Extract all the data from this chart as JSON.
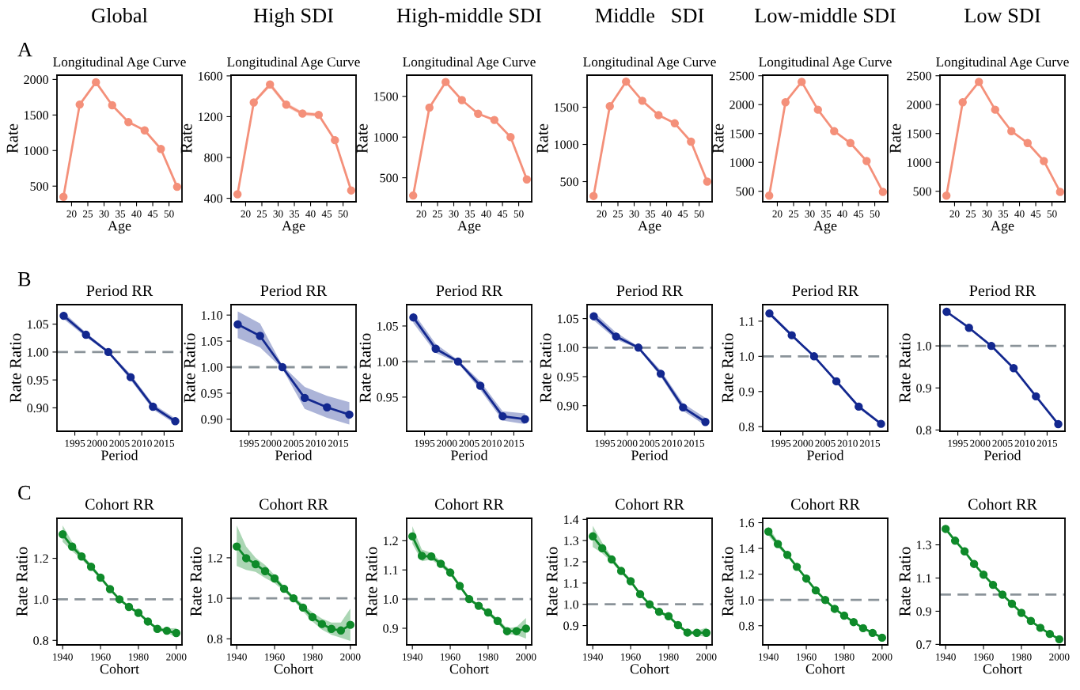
{
  "chart_data": [
    {
      "type": "line",
      "subtitle": "Global",
      "title": "Longitudinal Age Curve",
      "xlabel": "Age",
      "ylabel": "Rate",
      "annotations": [
        "A"
      ],
      "x": [
        17.5,
        22.5,
        27.5,
        32.5,
        37.5,
        42.5,
        47.5,
        52.5
      ],
      "xlim": [
        15.5,
        54
      ],
      "xticks": [
        20,
        25,
        30,
        35,
        40,
        45,
        50
      ],
      "ylim": [
        280,
        2060
      ],
      "yticks": [
        500,
        1000,
        1500,
        2000
      ],
      "marker": "circle",
      "line_style": "solid",
      "series": [
        {
          "color": "#f4907a",
          "values": [
            350,
            1647,
            1961,
            1637,
            1400,
            1284,
            1023,
            490
          ]
        }
      ]
    },
    {
      "type": "line",
      "subtitle": "High SDI",
      "title": "Longitudinal Age Curve",
      "xlabel": "Age",
      "ylabel": "Rate",
      "x": [
        17.5,
        22.5,
        27.5,
        32.5,
        37.5,
        42.5,
        47.5,
        52.5
      ],
      "xlim": [
        15.5,
        54
      ],
      "xticks": [
        20,
        25,
        30,
        35,
        40,
        45,
        50
      ],
      "ylim": [
        366,
        1607
      ],
      "yticks": [
        400,
        800,
        1200,
        1600
      ],
      "marker": "circle",
      "line_style": "solid",
      "series": [
        {
          "color": "#f4907a",
          "values": [
            440,
            1339,
            1516,
            1318,
            1231,
            1218,
            970,
            477
          ],
          "lower": [
            430,
            1325,
            1490,
            1295,
            1212,
            1200,
            958,
            468
          ],
          "upper": [
            450,
            1352,
            1540,
            1340,
            1250,
            1236,
            982,
            486
          ]
        }
      ]
    },
    {
      "type": "line",
      "subtitle": "High-middle SDI",
      "title": "Longitudinal Age Curve",
      "xlabel": "Age",
      "ylabel": "Rate",
      "x": [
        17.5,
        22.5,
        27.5,
        32.5,
        37.5,
        42.5,
        47.5,
        52.5
      ],
      "xlim": [
        15.5,
        54
      ],
      "xticks": [
        20,
        25,
        30,
        35,
        40,
        45,
        50
      ],
      "ylim": [
        205,
        1760
      ],
      "yticks": [
        500,
        1000,
        1500
      ],
      "marker": "circle",
      "line_style": "solid",
      "series": [
        {
          "color": "#f4907a",
          "values": [
            282,
            1361,
            1676,
            1454,
            1286,
            1210,
            1000,
            479
          ]
        }
      ]
    },
    {
      "type": "line",
      "subtitle": "Middle   SDI",
      "title": "Longitudinal Age Curve",
      "xlabel": "Age",
      "ylabel": "Rate",
      "x": [
        17.5,
        22.5,
        27.5,
        32.5,
        37.5,
        42.5,
        47.5,
        52.5
      ],
      "xlim": [
        15.5,
        54
      ],
      "xticks": [
        20,
        25,
        30,
        35,
        40,
        45,
        50
      ],
      "ylim": [
        229,
        1931
      ],
      "yticks": [
        500,
        1000,
        1500
      ],
      "marker": "circle",
      "line_style": "solid",
      "series": [
        {
          "color": "#f4907a",
          "values": [
            307,
            1514,
            1844,
            1587,
            1394,
            1284,
            1037,
            500
          ]
        }
      ]
    },
    {
      "type": "line",
      "subtitle": "Low-middle SDI",
      "title": "Longitudinal Age Curve",
      "xlabel": "Age",
      "ylabel": "Rate",
      "x": [
        17.5,
        22.5,
        27.5,
        32.5,
        37.5,
        42.5,
        47.5,
        52.5
      ],
      "xlim": [
        15.5,
        54
      ],
      "xticks": [
        20,
        25,
        30,
        35,
        40,
        45,
        50
      ],
      "ylim": [
        318,
        2510
      ],
      "yticks": [
        500,
        1000,
        1500,
        2000,
        2500
      ],
      "marker": "circle",
      "line_style": "solid",
      "series": [
        {
          "color": "#f4907a",
          "values": [
            424,
            2041,
            2394,
            1912,
            1541,
            1335,
            1024,
            490
          ]
        }
      ]
    },
    {
      "type": "line",
      "subtitle": "Low SDI",
      "title": "Longitudinal Age Curve",
      "xlabel": "Age",
      "ylabel": "Rate",
      "x": [
        17.5,
        22.5,
        27.5,
        32.5,
        37.5,
        42.5,
        47.5,
        52.5
      ],
      "xlim": [
        15.5,
        54
      ],
      "xticks": [
        20,
        25,
        30,
        35,
        40,
        45,
        50
      ],
      "ylim": [
        318,
        2510
      ],
      "yticks": [
        500,
        1000,
        1500,
        2000,
        2500
      ],
      "marker": "circle",
      "line_style": "solid",
      "series": [
        {
          "color": "#f4907a",
          "values": [
            424,
            2041,
            2394,
            1912,
            1541,
            1335,
            1024,
            490
          ]
        }
      ]
    },
    {
      "type": "line",
      "title": "Period RR",
      "xlabel": "Period",
      "ylabel": "Rate Ratio",
      "annotations": [
        "B"
      ],
      "x": [
        1992.5,
        1997.5,
        2002.5,
        2007.5,
        2012.5,
        2017.5
      ],
      "xlim": [
        1991,
        2019
      ],
      "xticks": [
        1995,
        2000,
        2005,
        2010,
        2015
      ],
      "ylim": [
        0.858,
        1.085
      ],
      "yticks": [
        {
          "value": 0.9,
          "label": "0.90"
        },
        {
          "value": 0.95,
          "label": "0.95"
        },
        {
          "value": 1.0,
          "label": "1.00"
        },
        {
          "value": 1.05,
          "label": "1.05"
        }
      ],
      "marker": "circle",
      "line_style": "solid",
      "ref_lines": [
        {
          "axis": "y",
          "value": 1.0,
          "color": "#8a9399",
          "line_style": "dashed"
        }
      ],
      "series": [
        {
          "color": "#13288f",
          "values": [
            1.065,
            1.031,
            1.0,
            0.955,
            0.902,
            0.876
          ],
          "lower": [
            1.059,
            1.027,
            0.998,
            0.95,
            0.897,
            0.871
          ],
          "upper": [
            1.071,
            1.035,
            1.002,
            0.96,
            0.907,
            0.881
          ]
        }
      ]
    },
    {
      "type": "line",
      "title": "Period RR",
      "xlabel": "Period",
      "ylabel": "Rate Ratio",
      "x": [
        1992.5,
        1997.5,
        2002.5,
        2007.5,
        2012.5,
        2017.5
      ],
      "xlim": [
        1991,
        2019
      ],
      "xticks": [
        1995,
        2000,
        2005,
        2010,
        2015
      ],
      "ylim": [
        0.877,
        1.12
      ],
      "yticks": [
        {
          "value": 0.9,
          "label": "0.90"
        },
        {
          "value": 0.95,
          "label": "0.95"
        },
        {
          "value": 1.0,
          "label": "1.00"
        },
        {
          "value": 1.05,
          "label": "1.05"
        },
        {
          "value": 1.1,
          "label": "1.10"
        }
      ],
      "marker": "circle",
      "line_style": "solid",
      "ref_lines": [
        {
          "axis": "y",
          "value": 1.0,
          "color": "#8a9399",
          "line_style": "dashed"
        }
      ],
      "series": [
        {
          "color": "#13288f",
          "values": [
            1.082,
            1.06,
            1.0,
            0.941,
            0.923,
            0.909
          ],
          "lower": [
            1.056,
            1.038,
            0.997,
            0.92,
            0.903,
            0.89
          ],
          "upper": [
            1.107,
            1.084,
            1.003,
            0.962,
            0.945,
            0.933
          ]
        }
      ]
    },
    {
      "type": "line",
      "title": "Period RR",
      "xlabel": "Period",
      "ylabel": "Rate Ratio",
      "x": [
        1992.5,
        1997.5,
        2002.5,
        2007.5,
        2012.5,
        2017.5
      ],
      "xlim": [
        1991,
        2019
      ],
      "xticks": [
        1995,
        2000,
        2005,
        2010,
        2015
      ],
      "ylim": [
        0.902,
        1.08
      ],
      "yticks": [
        {
          "value": 0.95,
          "label": "0.95"
        },
        {
          "value": 1.0,
          "label": "1.00"
        },
        {
          "value": 1.05,
          "label": "1.05"
        }
      ],
      "marker": "circle",
      "line_style": "solid",
      "ref_lines": [
        {
          "axis": "y",
          "value": 1.0,
          "color": "#8a9399",
          "line_style": "dashed"
        }
      ],
      "series": [
        {
          "color": "#13288f",
          "values": [
            1.062,
            1.018,
            1.0,
            0.966,
            0.923,
            0.919
          ],
          "lower": [
            1.054,
            1.012,
            0.998,
            0.96,
            0.917,
            0.912
          ],
          "upper": [
            1.069,
            1.025,
            1.002,
            0.972,
            0.93,
            0.927
          ]
        }
      ]
    },
    {
      "type": "line",
      "title": "Period RR",
      "xlabel": "Period",
      "ylabel": "Rate Ratio",
      "x": [
        1992.5,
        1997.5,
        2002.5,
        2007.5,
        2012.5,
        2017.5
      ],
      "xlim": [
        1991,
        2019
      ],
      "xticks": [
        1995,
        2000,
        2005,
        2010,
        2015
      ],
      "ylim": [
        0.856,
        1.074
      ],
      "yticks": [
        {
          "value": 0.9,
          "label": "0.90"
        },
        {
          "value": 0.95,
          "label": "0.95"
        },
        {
          "value": 1.0,
          "label": "1.00"
        },
        {
          "value": 1.05,
          "label": "1.05"
        }
      ],
      "marker": "circle",
      "line_style": "solid",
      "ref_lines": [
        {
          "axis": "y",
          "value": 1.0,
          "color": "#8a9399",
          "line_style": "dashed"
        }
      ],
      "series": [
        {
          "color": "#13288f",
          "values": [
            1.054,
            1.019,
            1.0,
            0.955,
            0.897,
            0.872
          ],
          "lower": [
            1.047,
            1.014,
            0.998,
            0.95,
            0.891,
            0.866
          ],
          "upper": [
            1.061,
            1.026,
            1.002,
            0.961,
            0.904,
            0.879
          ]
        }
      ]
    },
    {
      "type": "line",
      "title": "Period RR",
      "xlabel": "Period",
      "ylabel": "Rate Ratio",
      "x": [
        1992.5,
        1997.5,
        2002.5,
        2007.5,
        2012.5,
        2017.5
      ],
      "xlim": [
        1991,
        2019
      ],
      "xticks": [
        1995,
        2000,
        2005,
        2010,
        2015
      ],
      "ylim": [
        0.787,
        1.147
      ],
      "yticks": [
        0.8,
        0.9,
        {
          "value": 1.0,
          "label": "1.0"
        },
        1.1
      ],
      "marker": "circle",
      "line_style": "solid",
      "ref_lines": [
        {
          "axis": "y",
          "value": 1.0,
          "color": "#8a9399",
          "line_style": "dashed"
        }
      ],
      "series": [
        {
          "color": "#13288f",
          "values": [
            1.122,
            1.06,
            1.0,
            0.929,
            0.857,
            0.808
          ],
          "lower": [
            1.117,
            1.056,
            0.998,
            0.925,
            0.853,
            0.804
          ],
          "upper": [
            1.127,
            1.065,
            1.002,
            0.934,
            0.862,
            0.812
          ]
        }
      ]
    },
    {
      "type": "line",
      "title": "Period RR",
      "xlabel": "Period",
      "ylabel": "Rate Ratio",
      "x": [
        1992.5,
        1997.5,
        2002.5,
        2007.5,
        2012.5,
        2017.5
      ],
      "xlim": [
        1991,
        2019
      ],
      "xticks": [
        1995,
        2000,
        2005,
        2010,
        2015
      ],
      "ylim": [
        0.797,
        1.098
      ],
      "yticks": [
        0.8,
        0.9,
        {
          "value": 1.0,
          "label": "1.0"
        }
      ],
      "marker": "circle",
      "line_style": "solid",
      "ref_lines": [
        {
          "axis": "y",
          "value": 1.0,
          "color": "#8a9399",
          "line_style": "dashed"
        }
      ],
      "series": [
        {
          "color": "#13288f",
          "values": [
            1.081,
            1.043,
            1.0,
            0.947,
            0.88,
            0.814
          ]
        }
      ]
    },
    {
      "type": "line",
      "title": "Cohort RR",
      "xlabel": "Cohort",
      "ylabel": "Rate Ratio",
      "annotations": [
        "C"
      ],
      "x": [
        1940,
        1945,
        1950,
        1955,
        1960,
        1965,
        1970,
        1975,
        1980,
        1985,
        1990,
        1995,
        2000
      ],
      "xlim": [
        1937,
        2003
      ],
      "xticks": [
        1940,
        1960,
        1980,
        2000
      ],
      "ylim": [
        0.778,
        1.395
      ],
      "yticks": [
        0.8,
        {
          "value": 1.0,
          "label": "1.0"
        },
        1.2
      ],
      "marker": "circle",
      "line_style": "solid",
      "ref_lines": [
        {
          "axis": "y",
          "value": 1.0,
          "color": "#8a9399",
          "line_style": "dashed"
        }
      ],
      "series": [
        {
          "color": "#0f8a2a",
          "values": [
            1.317,
            1.257,
            1.209,
            1.159,
            1.106,
            1.05,
            1.0,
            0.963,
            0.934,
            0.892,
            0.856,
            0.847,
            0.836
          ],
          "lower": [
            1.28,
            1.235,
            1.195,
            1.147,
            1.097,
            1.042,
            0.995,
            0.957,
            0.927,
            0.885,
            0.848,
            0.838,
            0.815
          ],
          "upper": [
            1.36,
            1.28,
            1.222,
            1.17,
            1.115,
            1.058,
            1.005,
            0.969,
            0.941,
            0.899,
            0.864,
            0.858,
            0.86
          ]
        }
      ]
    },
    {
      "type": "line",
      "title": "Cohort RR",
      "xlabel": "Cohort",
      "ylabel": "Rate Ratio",
      "x": [
        1940,
        1945,
        1950,
        1955,
        1960,
        1965,
        1970,
        1975,
        1980,
        1985,
        1990,
        1995,
        2000
      ],
      "xlim": [
        1937,
        2003
      ],
      "xticks": [
        1940,
        1960,
        1980,
        2000
      ],
      "ylim": [
        0.77,
        1.395
      ],
      "yticks": [
        0.8,
        {
          "value": 1.0,
          "label": "1.0"
        },
        1.2
      ],
      "marker": "circle",
      "line_style": "solid",
      "ref_lines": [
        {
          "axis": "y",
          "value": 1.0,
          "color": "#8a9399",
          "line_style": "dashed"
        }
      ],
      "series": [
        {
          "color": "#0f8a2a",
          "values": [
            1.256,
            1.198,
            1.168,
            1.134,
            1.098,
            1.047,
            1.0,
            0.954,
            0.907,
            0.873,
            0.849,
            0.841,
            0.869
          ],
          "lower": [
            1.16,
            1.14,
            1.13,
            1.1,
            1.075,
            1.035,
            0.99,
            0.935,
            0.885,
            0.845,
            0.82,
            0.805,
            0.79
          ],
          "upper": [
            1.36,
            1.255,
            1.2,
            1.165,
            1.115,
            1.06,
            1.01,
            0.97,
            0.93,
            0.9,
            0.88,
            0.88,
            0.95
          ]
        }
      ]
    },
    {
      "type": "line",
      "title": "Cohort RR",
      "xlabel": "Cohort",
      "ylabel": "Rate Ratio",
      "x": [
        1940,
        1945,
        1950,
        1955,
        1960,
        1965,
        1970,
        1975,
        1980,
        1985,
        1990,
        1995,
        2000
      ],
      "xlim": [
        1937,
        2003
      ],
      "xticks": [
        1940,
        1960,
        1980,
        2000
      ],
      "ylim": [
        0.843,
        1.277
      ],
      "yticks": [
        0.9,
        {
          "value": 1.0,
          "label": "1.0"
        },
        1.1,
        1.2
      ],
      "marker": "circle",
      "line_style": "solid",
      "ref_lines": [
        {
          "axis": "y",
          "value": 1.0,
          "color": "#8a9399",
          "line_style": "dashed"
        }
      ],
      "series": [
        {
          "color": "#0f8a2a",
          "values": [
            1.215,
            1.148,
            1.146,
            1.121,
            1.091,
            1.045,
            1.0,
            0.977,
            0.954,
            0.925,
            0.89,
            0.89,
            0.899
          ],
          "lower": [
            1.19,
            1.13,
            1.135,
            1.112,
            1.083,
            1.038,
            0.995,
            0.971,
            0.947,
            0.917,
            0.88,
            0.877,
            0.865
          ],
          "upper": [
            1.25,
            1.17,
            1.158,
            1.13,
            1.1,
            1.052,
            1.005,
            0.983,
            0.961,
            0.933,
            0.9,
            0.905,
            0.935
          ]
        }
      ]
    },
    {
      "type": "line",
      "title": "Cohort RR",
      "xlabel": "Cohort",
      "ylabel": "Rate Ratio",
      "x": [
        1940,
        1945,
        1950,
        1955,
        1960,
        1965,
        1970,
        1975,
        1980,
        1985,
        1990,
        1995,
        2000
      ],
      "xlim": [
        1937,
        2003
      ],
      "xticks": [
        1940,
        1960,
        1980,
        2000
      ],
      "ylim": [
        0.809,
        1.405
      ],
      "yticks": [
        0.9,
        {
          "value": 1.0,
          "label": "1.0"
        },
        1.1,
        1.2,
        1.3,
        1.4
      ],
      "marker": "circle",
      "line_style": "solid",
      "ref_lines": [
        {
          "axis": "y",
          "value": 1.0,
          "color": "#8a9399",
          "line_style": "dashed"
        }
      ],
      "series": [
        {
          "color": "#0f8a2a",
          "values": [
            1.32,
            1.264,
            1.211,
            1.157,
            1.109,
            1.048,
            1.0,
            0.965,
            0.944,
            0.902,
            0.867,
            0.866,
            0.866
          ],
          "lower": [
            1.27,
            1.24,
            1.198,
            1.147,
            1.1,
            1.041,
            0.995,
            0.959,
            0.937,
            0.895,
            0.86,
            0.856,
            0.845
          ],
          "upper": [
            1.37,
            1.29,
            1.224,
            1.167,
            1.118,
            1.055,
            1.005,
            0.971,
            0.951,
            0.909,
            0.874,
            0.876,
            0.89
          ]
        }
      ]
    },
    {
      "type": "line",
      "title": "Cohort RR",
      "xlabel": "Cohort",
      "ylabel": "Rate Ratio",
      "x": [
        1940,
        1945,
        1950,
        1955,
        1960,
        1965,
        1970,
        1975,
        1980,
        1985,
        1990,
        1995,
        2000
      ],
      "xlim": [
        1937,
        2003
      ],
      "xticks": [
        1940,
        1960,
        1980,
        2000
      ],
      "ylim": [
        0.651,
        1.634
      ],
      "yticks": [
        0.8,
        {
          "value": 1.0,
          "label": "1.0"
        },
        1.2,
        1.4,
        1.6
      ],
      "marker": "circle",
      "line_style": "solid",
      "ref_lines": [
        {
          "axis": "y",
          "value": 1.0,
          "color": "#8a9399",
          "line_style": "dashed"
        }
      ],
      "series": [
        {
          "color": "#0f8a2a",
          "values": [
            1.531,
            1.434,
            1.35,
            1.257,
            1.166,
            1.074,
            1.0,
            0.931,
            0.878,
            0.828,
            0.781,
            0.744,
            0.707
          ],
          "lower": [
            1.5,
            1.41,
            1.338,
            1.248,
            1.158,
            1.068,
            0.996,
            0.927,
            0.874,
            0.824,
            0.777,
            0.739,
            0.7
          ],
          "upper": [
            1.57,
            1.455,
            1.362,
            1.266,
            1.174,
            1.08,
            1.004,
            0.935,
            0.882,
            0.832,
            0.785,
            0.749,
            0.714
          ]
        }
      ]
    },
    {
      "type": "line",
      "title": "Cohort RR",
      "xlabel": "Cohort",
      "ylabel": "Rate Ratio",
      "x": [
        1940,
        1945,
        1950,
        1955,
        1960,
        1965,
        1970,
        1975,
        1980,
        1985,
        1990,
        1995,
        2000
      ],
      "xlim": [
        1937,
        2003
      ],
      "xticks": [
        1940,
        1960,
        1980,
        2000
      ],
      "ylim": [
        0.697,
        1.46
      ],
      "yticks": [
        0.7,
        0.9,
        1.1,
        1.3
      ],
      "marker": "circle",
      "line_style": "solid",
      "ref_lines": [
        {
          "axis": "y",
          "value": 1.0,
          "color": "#8a9399",
          "line_style": "dashed"
        }
      ],
      "series": [
        {
          "color": "#0f8a2a",
          "values": [
            1.396,
            1.325,
            1.261,
            1.185,
            1.12,
            1.059,
            1.0,
            0.945,
            0.89,
            0.841,
            0.8,
            0.763,
            0.731
          ],
          "lower": [
            1.385,
            1.317,
            1.254,
            1.179,
            1.115,
            1.055,
            0.997,
            0.941,
            0.886,
            0.837,
            0.796,
            0.759,
            0.726
          ],
          "upper": [
            1.407,
            1.333,
            1.268,
            1.191,
            1.125,
            1.063,
            1.003,
            0.949,
            0.894,
            0.845,
            0.804,
            0.767,
            0.736
          ]
        }
      ]
    }
  ]
}
